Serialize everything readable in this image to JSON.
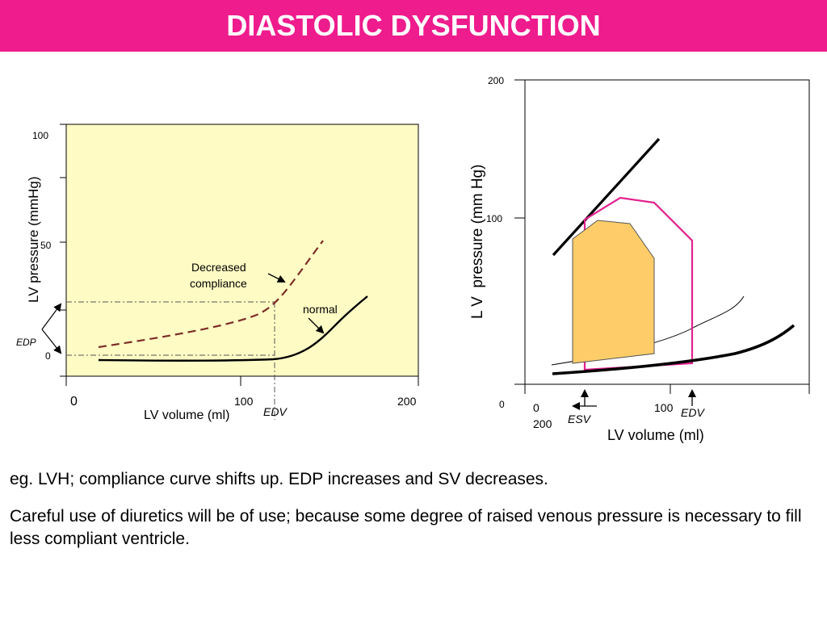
{
  "title": "DIASTOLIC DYSFUNCTION",
  "colors": {
    "header": "#ee1c8d",
    "left_panel": "#fefbc4",
    "dashed_curve": "#7b2d26",
    "pv_loop_pink": "#e2218f",
    "pv_loop_fill": "#fecd69"
  },
  "left_plot": {
    "y_label": "LV pressure (mmHg)",
    "x_label": "LV volume (ml)",
    "y_ticks": [
      "100",
      "50",
      "0"
    ],
    "x_ticks": [
      "0",
      "100",
      "200"
    ],
    "edp_label": "EDP",
    "edv_label": "EDV",
    "decreased_line1": "Decreased",
    "decreased_line2": "compliance",
    "normal_label": "normal"
  },
  "right_plot": {
    "y_label": "L V  pressure (mm Hg)",
    "x_label": "LV volume (ml)",
    "y_tick_top": "200",
    "y_tick_mid": "100",
    "y_tick_zero": "0",
    "x_tick_0": "0",
    "x_tick_200": "200",
    "x_tick_100": "100",
    "esv_label": "ESV",
    "edv_label": "EDV"
  },
  "text": {
    "para1": "eg. LVH; compliance curve shifts up. EDP increases and SV decreases.",
    "para2": "Careful use of diuretics will be of use; because some degree of raised venous pressure is necessary to fill less compliant ventricle."
  }
}
